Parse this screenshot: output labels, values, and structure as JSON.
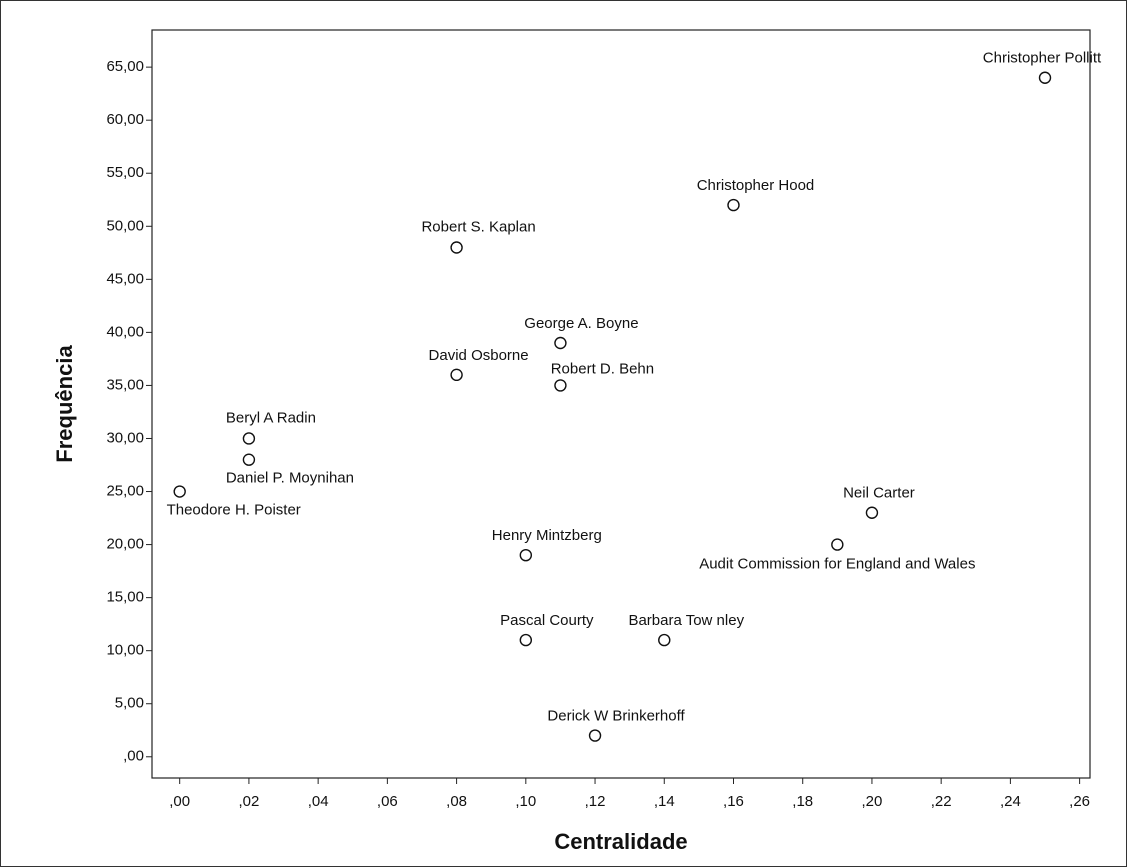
{
  "chart_data": {
    "type": "scatter",
    "xlabel": "Centralidade",
    "ylabel": "Frequência",
    "point_labels": [
      "Theodore H. Poister",
      "Beryl A Radin",
      "Daniel P. Moynihan",
      "Robert S. Kaplan",
      "David Osborne",
      "George A. Boyne",
      "Robert D. Behn",
      "Henry Mintzberg",
      "Pascal Courty",
      "Barbara Tow nley",
      "Derick W Brinkerhoff",
      "Christopher Hood",
      "Christopher Pollitt",
      "Neil Carter",
      "Audit Commission for England and Wales"
    ],
    "x": [
      0,
      0.02,
      0.02,
      0.08,
      0.08,
      0.11,
      0.11,
      0.1,
      0.1,
      0.14,
      0.12,
      0.16,
      0.25,
      0.2,
      0.19
    ],
    "values": [
      25,
      30,
      28,
      48,
      36,
      39,
      35,
      19,
      11,
      11,
      2,
      52,
      64,
      23,
      20
    ],
    "xlim": [
      -0.008,
      0.263
    ],
    "xticks": [
      {
        "value": 0,
        "label": ",00"
      },
      {
        "value": 0.02,
        "label": ",02"
      },
      {
        "value": 0.04,
        "label": ",04"
      },
      {
        "value": 0.06,
        "label": ",06"
      },
      {
        "value": 0.08,
        "label": ",08"
      },
      {
        "value": 0.1,
        "label": ",10"
      },
      {
        "value": 0.12,
        "label": ",12"
      },
      {
        "value": 0.14,
        "label": ",14"
      },
      {
        "value": 0.16,
        "label": ",16"
      },
      {
        "value": 0.18,
        "label": ",18"
      },
      {
        "value": 0.2,
        "label": ",20"
      },
      {
        "value": 0.22,
        "label": ",22"
      },
      {
        "value": 0.24,
        "label": ",24"
      },
      {
        "value": 0.26,
        "label": ",26"
      }
    ],
    "ylim": [
      -2,
      68.5
    ],
    "yticks": [
      {
        "value": 0,
        "label": ",00"
      },
      {
        "value": 5,
        "label": "5,00"
      },
      {
        "value": 10,
        "label": "10,00"
      },
      {
        "value": 15,
        "label": "15,00"
      },
      {
        "value": 20,
        "label": "20,00"
      },
      {
        "value": 25,
        "label": "25,00"
      },
      {
        "value": 30,
        "label": "30,00"
      },
      {
        "value": 35,
        "label": "35,00"
      },
      {
        "value": 40,
        "label": "40,00"
      },
      {
        "value": 45,
        "label": "45,00"
      },
      {
        "value": 50,
        "label": "50,00"
      },
      {
        "value": 55,
        "label": "55,00"
      },
      {
        "value": 60,
        "label": "60,00"
      },
      {
        "value": 65,
        "label": "65,00"
      }
    ],
    "grid": false
  }
}
